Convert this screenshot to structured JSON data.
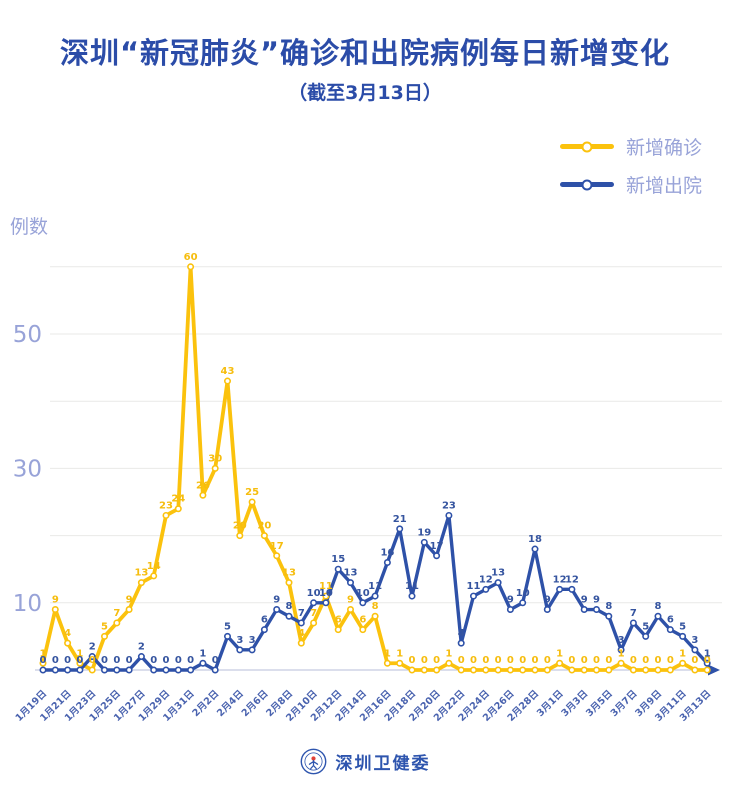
{
  "header": {
    "title": "深圳“新冠肺炎”确诊和出院病例每日新增变化",
    "subtitle": "（截至3月13日）"
  },
  "y_axis": {
    "title": "例数",
    "tick_labels": [
      50,
      30,
      10
    ],
    "gridline_values": [
      10,
      20,
      30,
      40,
      50,
      60
    ],
    "max": 60
  },
  "chart_data": {
    "type": "line",
    "x": [
      "1月19日",
      "1月20日",
      "1月21日",
      "1月22日",
      "1月23日",
      "1月24日",
      "1月25日",
      "1月26日",
      "1月27日",
      "1月28日",
      "1月29日",
      "1月30日",
      "1月31日",
      "2月1日",
      "2月2日",
      "2月3日",
      "2月4日",
      "2月5日",
      "2月6日",
      "2月7日",
      "2月8日",
      "2月9日",
      "2月10日",
      "2月11日",
      "2月12日",
      "2月13日",
      "2月14日",
      "2月15日",
      "2月16日",
      "2月17日",
      "2月18日",
      "2月19日",
      "2月20日",
      "2月21日",
      "2月22日",
      "2月23日",
      "2月24日",
      "2月25日",
      "2月26日",
      "2月27日",
      "2月28日",
      "2月29日",
      "3月1日",
      "3月2日",
      "3月3日",
      "3月4日",
      "3月5日",
      "3月6日",
      "3月7日",
      "3月8日",
      "3月9日",
      "3月10日",
      "3月11日",
      "3月12日",
      "3月13日"
    ],
    "series": [
      {
        "name": "新增确诊",
        "color": "#FBC20D",
        "label_color": "#F6BD0E",
        "values": [
          1,
          9,
          4,
          1,
          0,
          5,
          7,
          9,
          13,
          14,
          23,
          24,
          60,
          26,
          30,
          43,
          20,
          25,
          20,
          17,
          13,
          4,
          7,
          11,
          6,
          9,
          6,
          8,
          1,
          1,
          0,
          0,
          0,
          1,
          0,
          0,
          0,
          0,
          0,
          0,
          0,
          0,
          1,
          0,
          0,
          0,
          0,
          1,
          0,
          0,
          0,
          0,
          1,
          0,
          0
        ]
      },
      {
        "name": "新增出院",
        "color": "#2E51A8",
        "label_color": "#35549F",
        "values": [
          0,
          0,
          0,
          0,
          2,
          0,
          0,
          0,
          2,
          0,
          0,
          0,
          0,
          1,
          0,
          5,
          3,
          3,
          6,
          9,
          8,
          7,
          10,
          10,
          15,
          13,
          10,
          11,
          16,
          21,
          11,
          19,
          17,
          23,
          4,
          11,
          12,
          13,
          9,
          10,
          18,
          9,
          12,
          12,
          9,
          9,
          8,
          3,
          7,
          5,
          8,
          6,
          5,
          3,
          1
        ]
      }
    ],
    "ylim": [
      0,
      60
    ],
    "legend_position": "top-right",
    "grid": "horizontal"
  },
  "footer": {
    "brand": "深圳卫健委"
  },
  "colors": {
    "title_blue": "#2B4CA8",
    "confirmed_yellow": "#FBC20D",
    "discharged_blue": "#2E51A8",
    "light_label": "#98A3D8",
    "x_label": "#4A63AF",
    "gridline": "#E9E9E7",
    "axis_line": "#C5CBE0",
    "background": "#FFFFFF"
  }
}
